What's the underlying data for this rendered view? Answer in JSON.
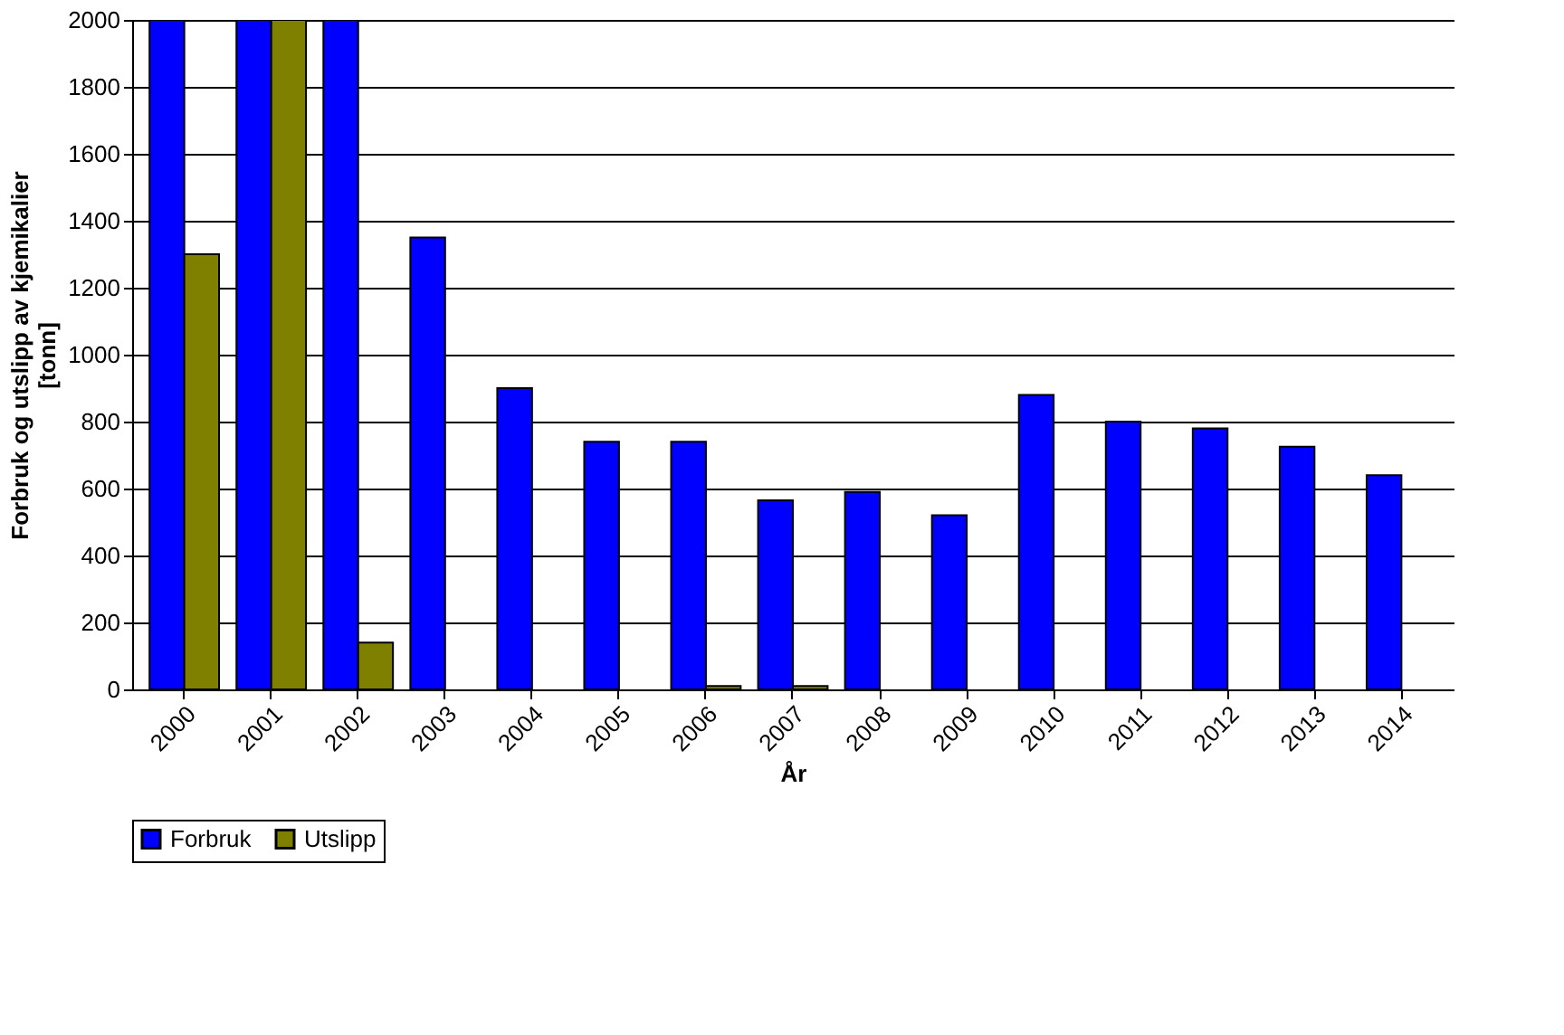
{
  "chart_data": {
    "type": "bar",
    "categories": [
      "2000",
      "2001",
      "2002",
      "2003",
      "2004",
      "2005",
      "2006",
      "2007",
      "2008",
      "2009",
      "2010",
      "2011",
      "2012",
      "2013",
      "2014"
    ],
    "series": [
      {
        "name": "Forbruk",
        "color": "#0000ff",
        "values": [
          2000,
          2000,
          2000,
          1350,
          900,
          740,
          740,
          565,
          590,
          520,
          880,
          800,
          780,
          725,
          640
        ]
      },
      {
        "name": "Utslipp",
        "color": "#808000",
        "values": [
          1300,
          2000,
          140,
          null,
          null,
          null,
          10,
          10,
          null,
          null,
          null,
          null,
          null,
          null,
          null
        ]
      }
    ],
    "xlabel": "År",
    "ylabel": "Forbruk og utslipp av kjemikalier [tonn]",
    "ylim": [
      0,
      2000
    ],
    "yticks": [
      0,
      200,
      400,
      600,
      800,
      1000,
      1200,
      1400,
      1600,
      1800,
      2000
    ],
    "grid": "y",
    "legend": "bottom"
  }
}
